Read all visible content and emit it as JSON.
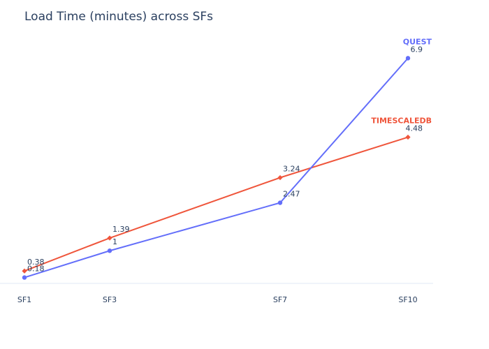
{
  "chart_data": {
    "type": "line",
    "title": "Load Time (minutes) across SFs",
    "xlabel": "",
    "ylabel": "",
    "x": [
      "SF1",
      "SF3",
      "SF7",
      "SF10"
    ],
    "x_numeric": [
      1,
      3,
      7,
      10
    ],
    "ylim": [
      0,
      7.4
    ],
    "grid": false,
    "legend": "none",
    "series": [
      {
        "name": "TIMESCALEDB",
        "color": "#EF553B",
        "marker": "diamond",
        "values": [
          0.38,
          1.39,
          3.24,
          4.48
        ],
        "labels": [
          "0.38",
          "1.39",
          "3.24",
          "4.48"
        ]
      },
      {
        "name": "QUEST",
        "color": "#636EFA",
        "marker": "circle",
        "values": [
          0.18,
          1,
          2.47,
          6.9
        ],
        "labels": [
          "0.18",
          "1",
          "2.47",
          "6.9"
        ]
      }
    ]
  }
}
